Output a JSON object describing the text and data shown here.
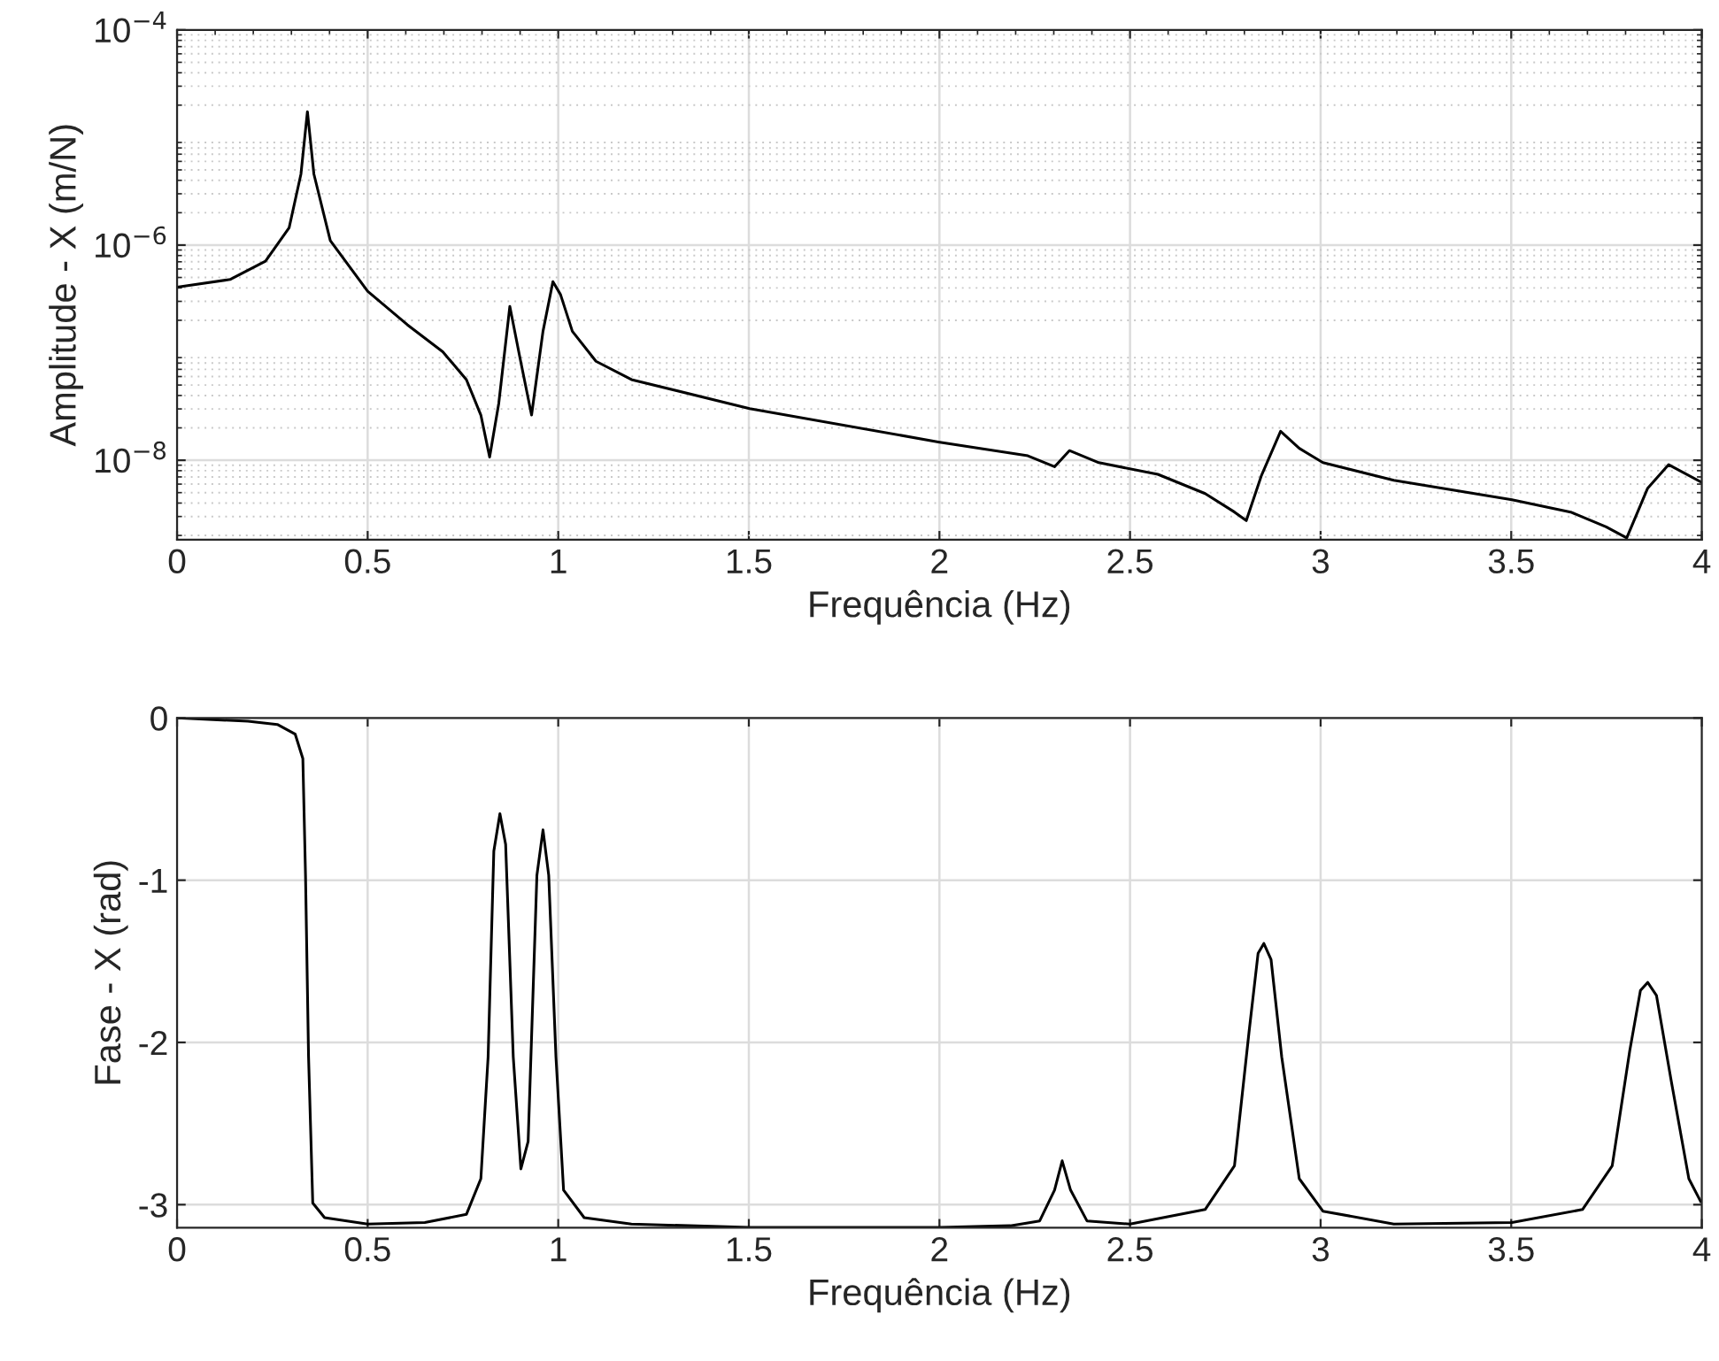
{
  "chart_data": [
    {
      "type": "line",
      "xlabel": "Frequência (Hz)",
      "ylabel": "Amplitude - X (m/N)",
      "log": "y",
      "grid": true,
      "marker": "none",
      "line_style": "solid",
      "xlim": [
        0,
        4
      ],
      "xticks": [
        0,
        0.5,
        1,
        1.5,
        2,
        2.5,
        3,
        3.5,
        4
      ],
      "ylim": [
        1.83e-09,
        0.0001
      ],
      "yticks": [
        {
          "value": 1e-08,
          "label": "10$^{−8}$"
        },
        {
          "value": 1e-06,
          "label": "10$^{−6}$"
        },
        {
          "value": 0.0001,
          "label": "10$^{−4}$"
        }
      ],
      "series": [
        {
          "color": "#000000",
          "x": [
            0,
            0.139,
            0.232,
            0.294,
            0.325,
            0.342,
            0.359,
            0.402,
            0.5,
            0.604,
            0.697,
            0.759,
            0.797,
            0.82,
            0.844,
            0.873,
            0.898,
            0.93,
            0.96,
            0.986,
            1.006,
            1.037,
            1.099,
            1.192,
            1.502,
            1.997,
            2.232,
            2.302,
            2.341,
            2.418,
            2.573,
            2.697,
            2.774,
            2.805,
            2.844,
            2.895,
            2.944,
            3.006,
            3.192,
            3.502,
            3.656,
            3.749,
            3.803,
            3.858,
            3.913,
            3.997
          ],
          "values": [
            4.07e-07,
            4.79e-07,
            7.08e-07,
            1.45e-06,
            4.57e-06,
            1.74e-05,
            4.57e-06,
            1.1e-06,
            3.72e-07,
            1.82e-07,
            1.02e-07,
            5.62e-08,
            2.63e-08,
            1.07e-08,
            3.39e-08,
            2.69e-07,
            9.55e-08,
            2.63e-08,
            1.58e-07,
            4.57e-07,
            3.47e-07,
            1.58e-07,
            8.32e-08,
            5.62e-08,
            3.02e-08,
            1.48e-08,
            1.1e-08,
            8.7e-09,
            1.23e-08,
            9.5e-09,
            7.4e-09,
            4.9e-09,
            3.3e-09,
            2.75e-09,
            7.1e-09,
            1.86e-08,
            1.29e-08,
            9.5e-09,
            6.5e-09,
            4.3e-09,
            3.3e-09,
            2.4e-09,
            1.9e-09,
            5.5e-09,
            9.1e-09,
            6.3e-09
          ]
        }
      ]
    },
    {
      "type": "line",
      "xlabel": "Frequência (Hz)",
      "ylabel": "Fase - X (rad)",
      "grid": true,
      "marker": "none",
      "line_style": "solid",
      "xlim": [
        0,
        4
      ],
      "xticks": [
        0,
        0.5,
        1,
        1.5,
        2,
        2.5,
        3,
        3.5,
        4
      ],
      "ylim": [
        -3.1416,
        0
      ],
      "yticks": [
        {
          "value": -3,
          "label": "-3"
        },
        {
          "value": -2,
          "label": "-2"
        },
        {
          "value": -1,
          "label": "-1"
        },
        0
      ],
      "series": [
        {
          "color": "#000000",
          "x": [
            0,
            0.186,
            0.263,
            0.31,
            0.33,
            0.337,
            0.345,
            0.356,
            0.387,
            0.5,
            0.65,
            0.759,
            0.797,
            0.816,
            0.831,
            0.847,
            0.862,
            0.882,
            0.902,
            0.921,
            0.944,
            0.96,
            0.975,
            0.994,
            1.014,
            1.068,
            1.192,
            1.502,
            2.0,
            2.186,
            2.263,
            2.302,
            2.322,
            2.344,
            2.387,
            2.5,
            2.697,
            2.774,
            2.812,
            2.836,
            2.851,
            2.87,
            2.898,
            2.944,
            3.006,
            3.192,
            3.502,
            3.687,
            3.765,
            3.811,
            3.839,
            3.858,
            3.881,
            3.92,
            3.966,
            3.997
          ],
          "values": [
            0,
            -0.02,
            -0.04,
            -0.1,
            -0.25,
            -0.97,
            -2.09,
            -2.99,
            -3.08,
            -3.12,
            -3.11,
            -3.06,
            -2.84,
            -2.09,
            -0.82,
            -0.59,
            -0.78,
            -2.09,
            -2.78,
            -2.61,
            -0.97,
            -0.69,
            -0.97,
            -2.09,
            -2.91,
            -3.08,
            -3.12,
            -3.14,
            -3.14,
            -3.13,
            -3.1,
            -2.91,
            -2.73,
            -2.91,
            -3.1,
            -3.12,
            -3.03,
            -2.76,
            -1.94,
            -1.45,
            -1.39,
            -1.49,
            -2.09,
            -2.84,
            -3.04,
            -3.12,
            -3.11,
            -3.03,
            -2.76,
            -2.05,
            -1.68,
            -1.63,
            -1.71,
            -2.24,
            -2.84,
            -2.98
          ]
        }
      ]
    }
  ]
}
